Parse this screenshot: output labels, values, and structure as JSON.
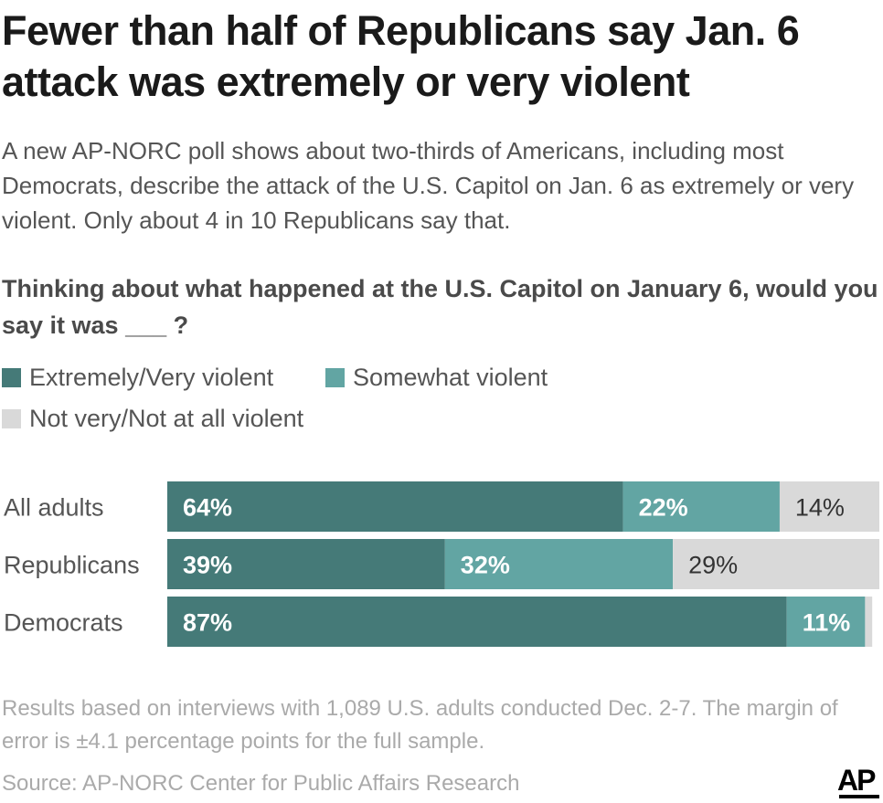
{
  "title": "Fewer than half of Republicans say Jan. 6 attack was extremely or very violent",
  "subtitle": "A new AP-NORC poll shows about two-thirds of Americans, including most Democrats, describe the attack of the U.S. Capitol on Jan. 6 as extremely or very violent. Only about 4 in 10 Republicans say that.",
  "question": "Thinking about what happened at the U.S. Capitol on January 6, would you say it was ___ ?",
  "legend": [
    {
      "label": "Extremely/Very violent",
      "color": "#457a78"
    },
    {
      "label": "Somewhat violent",
      "color": "#62a5a3"
    },
    {
      "label": "Not very/Not at all violent",
      "color": "#d9d9d9"
    }
  ],
  "chart_data": {
    "type": "bar",
    "orientation": "horizontal",
    "stacked": true,
    "percent": true,
    "categories": [
      "All adults",
      "Republicans",
      "Democrats"
    ],
    "series": [
      {
        "name": "Extremely/Very violent",
        "values": [
          64,
          39,
          87
        ],
        "labels": [
          "64%",
          "39%",
          "87%"
        ],
        "color": "#457a78",
        "label_color": "#ffffff"
      },
      {
        "name": "Somewhat violent",
        "values": [
          22,
          32,
          11
        ],
        "labels": [
          "22%",
          "32%",
          "11%"
        ],
        "color": "#62a5a3",
        "label_color": "#ffffff"
      },
      {
        "name": "Not very/Not at all violent",
        "values": [
          14,
          29,
          1
        ],
        "labels": [
          "14%",
          "29%",
          ""
        ],
        "color": "#d9d9d9",
        "label_color": "#333333"
      }
    ],
    "xlim": [
      0,
      100
    ],
    "grid": false,
    "legend_position": "top-left"
  },
  "footnote": "Results based on interviews with 1,089 U.S. adults conducted Dec. 2-7. The margin of error is ±4.1 percentage points for the full sample.",
  "source": "Source: AP-NORC Center for Public Affairs Research",
  "logo_text": "AP"
}
